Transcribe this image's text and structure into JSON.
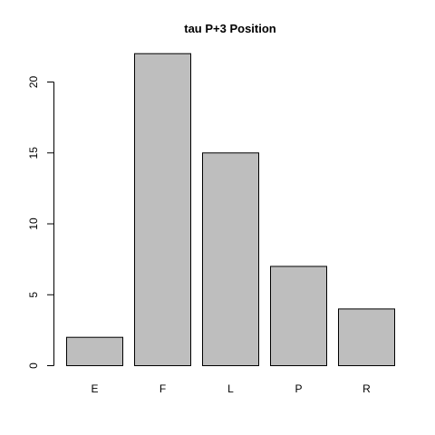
{
  "chart_data": {
    "type": "bar",
    "title": "tau P+3 Position",
    "xlabel": "",
    "ylabel": "",
    "categories": [
      "E",
      "F",
      "L",
      "P",
      "R"
    ],
    "values": [
      2,
      22,
      15,
      7,
      4
    ],
    "ylim": [
      0,
      22
    ],
    "yticks": [
      0,
      5,
      10,
      15,
      20
    ],
    "bar_color": "#bebebe",
    "grid": false,
    "legend": "none"
  }
}
